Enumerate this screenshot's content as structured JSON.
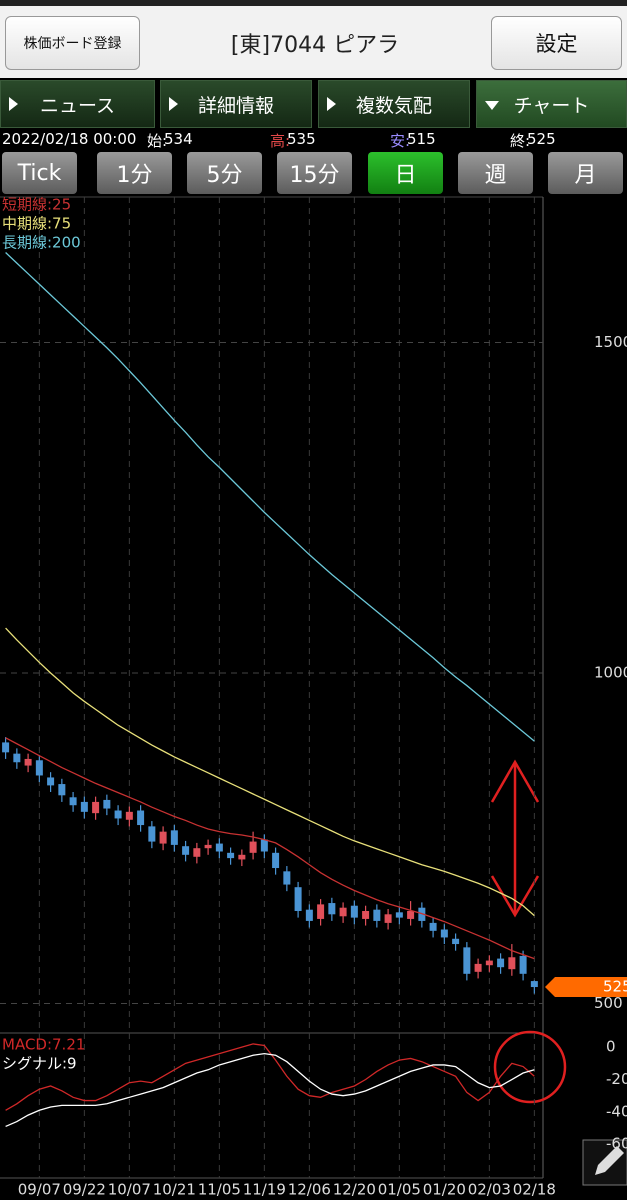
{
  "header": {
    "board_button": "株価ボード登録",
    "title": "[東]7044 ピアラ",
    "settings": "設定"
  },
  "tabs": {
    "items": [
      "ニュース",
      "詳細情報",
      "複数気配",
      "チャート"
    ],
    "active": 3
  },
  "quote": {
    "date": "2022/02/18 00:00",
    "labels": [
      "始:",
      "高:",
      "安:",
      "終:"
    ],
    "label_colors": [
      "#ffffff",
      "#e04848",
      "#9a8cff",
      "#ffffff"
    ]
  },
  "periods": {
    "items": [
      "Tick",
      "1分",
      "5分",
      "15分",
      "日",
      "週",
      "月"
    ],
    "active": 4
  },
  "chart_data": [
    {
      "type": "candlestick",
      "categories": [
        null,
        null,
        null,
        "09/07",
        null,
        null,
        null,
        "09/22",
        null,
        null,
        null,
        "10/07",
        null,
        null,
        null,
        "10/21",
        null,
        null,
        null,
        "11/05",
        null,
        null,
        null,
        "11/19",
        null,
        null,
        null,
        "12/06",
        null,
        null,
        null,
        "12/20",
        null,
        null,
        null,
        "01/05",
        null,
        null,
        null,
        "01/20",
        null,
        null,
        null,
        "02/03",
        null,
        null,
        null,
        "02/18"
      ],
      "open": [
        895,
        878,
        860,
        868,
        842,
        832,
        812,
        805,
        788,
        808,
        792,
        778,
        792,
        768,
        742,
        762,
        738,
        722,
        735,
        742,
        728,
        718,
        728,
        748,
        728,
        700,
        676,
        642,
        628,
        652,
        632,
        648,
        628,
        642,
        622,
        638,
        628,
        645,
        622,
        612,
        598,
        585,
        548,
        558,
        568,
        552,
        572,
        534
      ],
      "high": [
        903,
        886,
        878,
        876,
        850,
        840,
        820,
        813,
        813,
        816,
        800,
        798,
        800,
        776,
        768,
        770,
        746,
        743,
        748,
        750,
        736,
        733,
        760,
        756,
        736,
        708,
        684,
        650,
        658,
        660,
        653,
        656,
        648,
        650,
        643,
        646,
        655,
        653,
        630,
        620,
        606,
        593,
        568,
        573,
        576,
        590,
        580,
        535
      ],
      "low": [
        870,
        855,
        850,
        835,
        820,
        805,
        790,
        780,
        778,
        785,
        770,
        768,
        760,
        735,
        732,
        730,
        715,
        712,
        725,
        720,
        710,
        708,
        718,
        720,
        695,
        670,
        630,
        615,
        618,
        625,
        622,
        620,
        618,
        615,
        612,
        620,
        618,
        615,
        600,
        590,
        580,
        535,
        538,
        548,
        545,
        542,
        535,
        515
      ],
      "close": [
        880,
        865,
        870,
        845,
        830,
        815,
        800,
        790,
        805,
        795,
        780,
        790,
        770,
        745,
        760,
        740,
        725,
        735,
        740,
        730,
        720,
        725,
        745,
        730,
        705,
        680,
        640,
        625,
        650,
        635,
        645,
        630,
        640,
        625,
        635,
        630,
        640,
        625,
        610,
        600,
        590,
        545,
        560,
        565,
        555,
        570,
        545,
        525
      ],
      "up_color": "#e0505a",
      "down_color": "#4a94d4",
      "series": [
        {
          "name": "短期線:25",
          "color": "#c83232",
          "values": [
            902,
            893,
            884,
            875,
            866,
            857,
            849,
            841,
            833,
            826,
            819,
            812,
            805,
            797,
            790,
            783,
            777,
            770,
            764,
            760,
            757,
            755,
            752,
            748,
            743,
            733,
            722,
            710,
            698,
            688,
            679,
            671,
            664,
            657,
            651,
            646,
            641,
            636,
            630,
            624,
            617,
            610,
            603,
            596,
            588,
            580,
            574,
            568
          ]
        },
        {
          "name": "中期線:75",
          "color": "#e8e07a",
          "values": [
            1068,
            1050,
            1033,
            1016,
            1000,
            985,
            970,
            957,
            945,
            933,
            921,
            911,
            901,
            891,
            882,
            873,
            865,
            857,
            849,
            841,
            833,
            825,
            817,
            809,
            801,
            793,
            785,
            777,
            769,
            761,
            753,
            746,
            740,
            734,
            728,
            722,
            716,
            710,
            705,
            700,
            694,
            688,
            682,
            675,
            667,
            659,
            648,
            633
          ]
        },
        {
          "name": "長期線:200",
          "color": "#6cc8d8",
          "values": [
            1636,
            1620,
            1604,
            1588,
            1572,
            1556,
            1540,
            1524,
            1508,
            1492,
            1475,
            1457,
            1439,
            1420,
            1401,
            1382,
            1364,
            1345,
            1327,
            1311,
            1294,
            1277,
            1260,
            1243,
            1227,
            1211,
            1195,
            1179,
            1164,
            1149,
            1135,
            1121,
            1107,
            1093,
            1079,
            1065,
            1051,
            1037,
            1023,
            1008,
            994,
            981,
            967,
            953,
            939,
            925,
            911,
            897
          ]
        }
      ],
      "ylim": [
        460,
        1720
      ],
      "yticks": [
        500,
        1000,
        1500
      ],
      "grid": true
    },
    {
      "type": "line",
      "series": [
        {
          "name": "MACD:7.21",
          "color": "#d02828",
          "values": [
            -39,
            -35,
            -30,
            -26,
            -24,
            -27,
            -31,
            -33,
            -33,
            -30,
            -26,
            -22,
            -21,
            -22,
            -18,
            -14,
            -10,
            -8,
            -6,
            -4,
            -2,
            0,
            2,
            1,
            -8,
            -18,
            -26,
            -30,
            -31,
            -28,
            -26,
            -24,
            -20,
            -15,
            -11,
            -8,
            -7,
            -9,
            -12,
            -15,
            -18,
            -28,
            -33,
            -28,
            -18,
            -10,
            -12,
            -18
          ]
        },
        {
          "name": "シグナル:9",
          "color": "#ffffff",
          "values": [
            -49,
            -46,
            -42,
            -39,
            -37,
            -36,
            -36,
            -36,
            -36,
            -35,
            -33,
            -31,
            -29,
            -27,
            -25,
            -22,
            -19,
            -16,
            -14,
            -11,
            -9,
            -7,
            -5,
            -4,
            -5,
            -9,
            -15,
            -21,
            -26,
            -29,
            -30,
            -29,
            -27,
            -24,
            -21,
            -18,
            -15,
            -13,
            -11,
            -11,
            -12,
            -17,
            -22,
            -25,
            -24,
            -20,
            -16,
            -14
          ]
        }
      ],
      "ylim": [
        -79,
        7.5
      ],
      "yticks": [
        0,
        -20,
        -40,
        -60
      ],
      "grid": false
    }
  ]
}
